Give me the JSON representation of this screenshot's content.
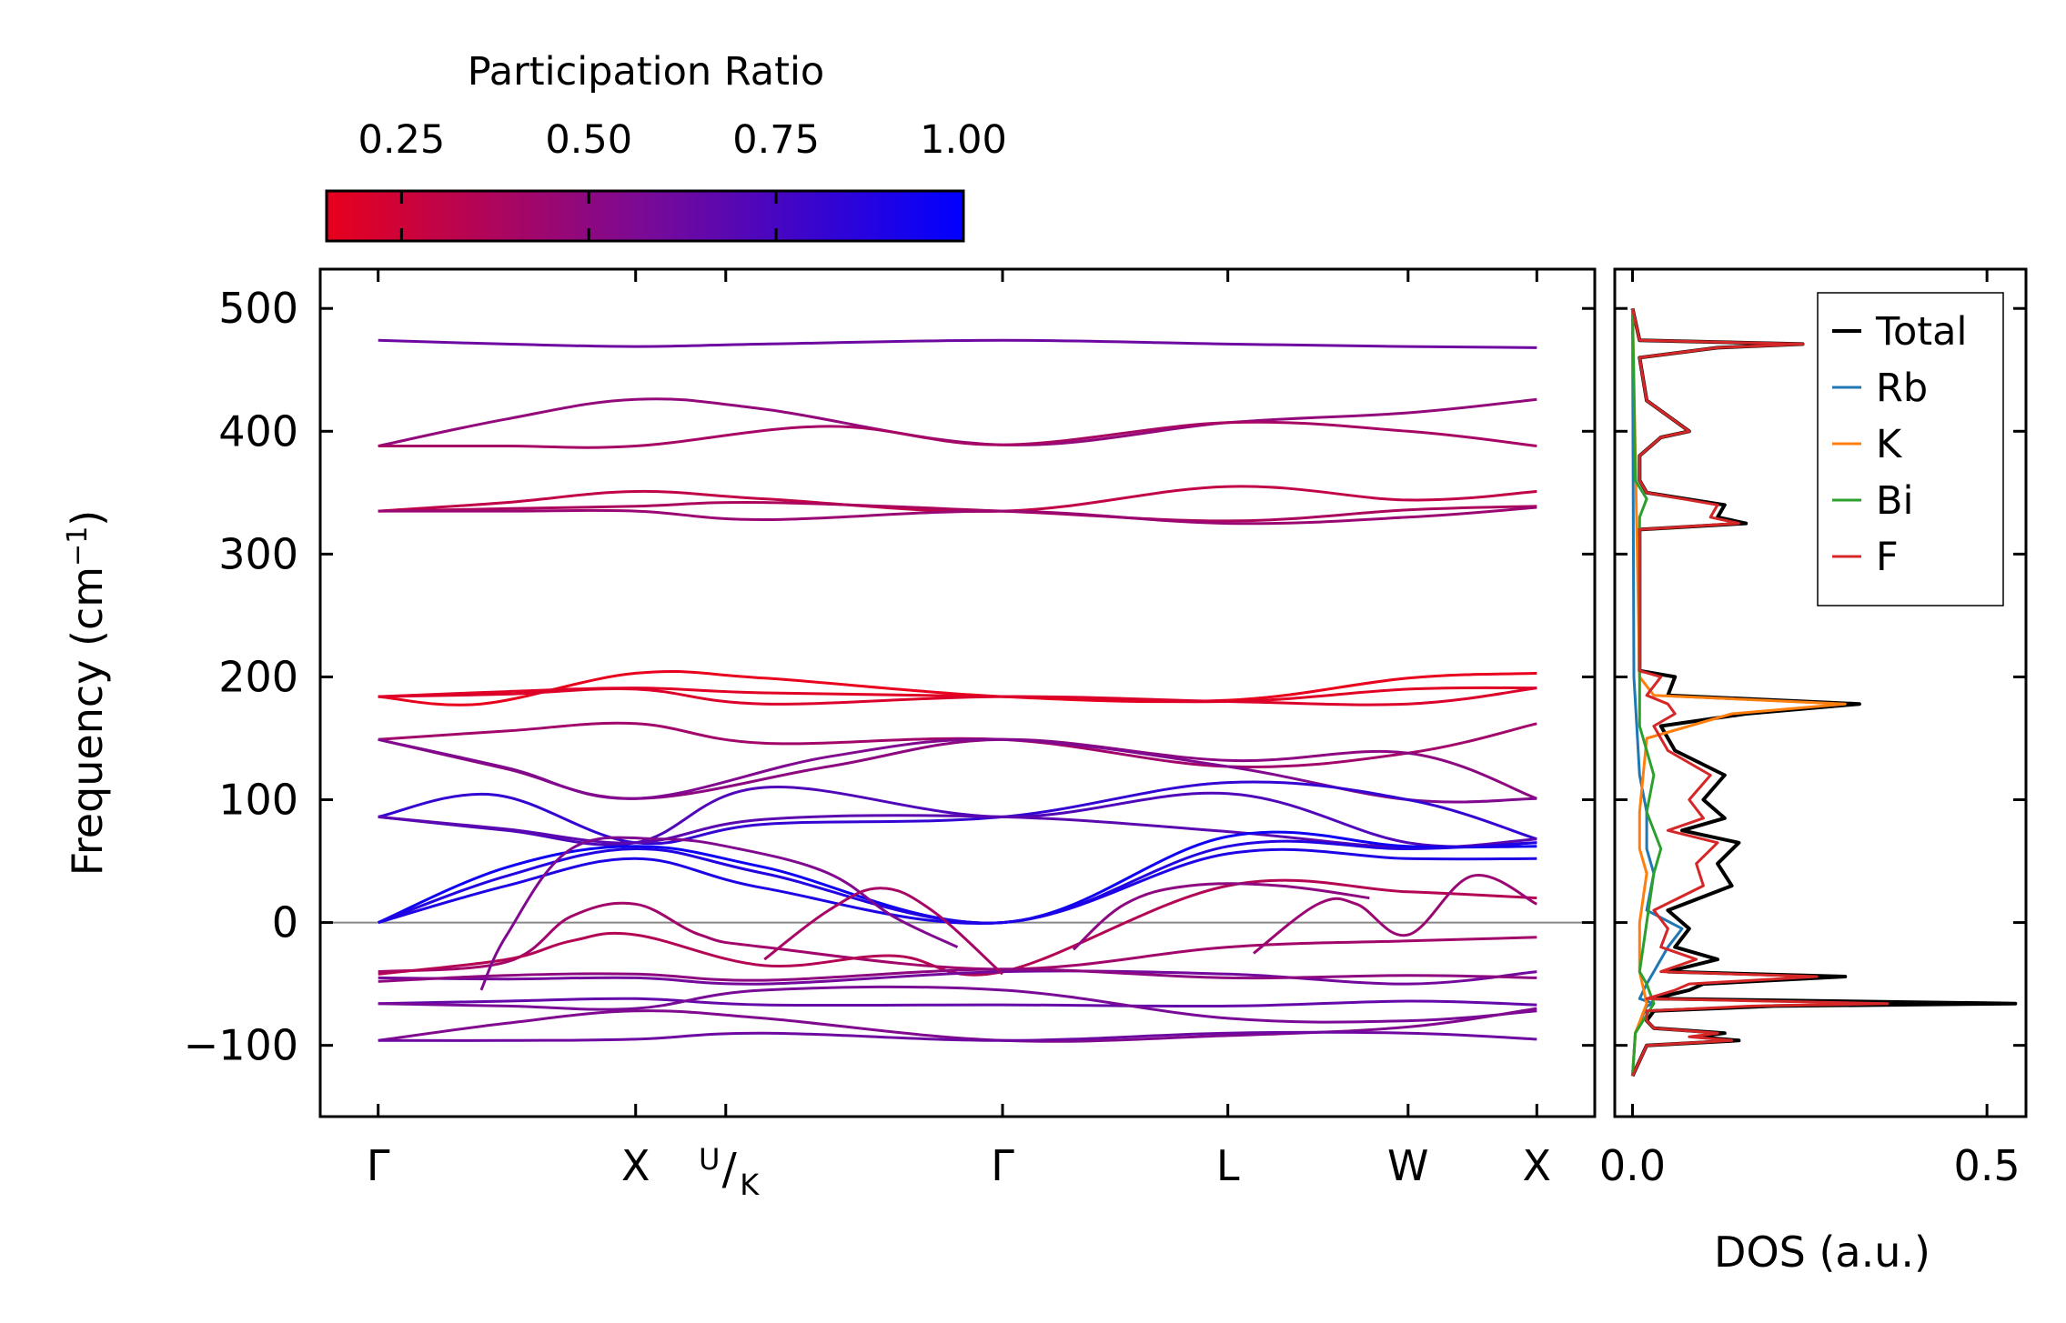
{
  "chart_data": [
    {
      "type": "line",
      "panel": "band-structure",
      "ylabel": "Frequency (cm",
      "ylabel_sup": "−1",
      "ylabel_close": ")",
      "xlabel": "",
      "ylim": [
        -158,
        532
      ],
      "yticks": [
        {
          "value": 500,
          "label": "500"
        },
        {
          "value": 400,
          "label": "400"
        },
        {
          "value": 300,
          "label": "300"
        },
        {
          "value": 200,
          "label": "200"
        },
        {
          "value": 100,
          "label": "100"
        },
        {
          "value": 0,
          "label": "0"
        },
        {
          "value": -100,
          "label": "−100"
        }
      ],
      "xlim": [
        -0.45,
        9.45
      ],
      "kpoints": [
        {
          "x": 0,
          "label": "Γ"
        },
        {
          "x": 2.0,
          "label": "X"
        },
        {
          "x": 2.7,
          "label": "U",
          "label2": "/",
          "label3": "K"
        },
        {
          "x": 4.85,
          "label": "Γ"
        },
        {
          "x": 6.6,
          "label": "L"
        },
        {
          "x": 8.0,
          "label": "W"
        },
        {
          "x": 9.0,
          "label": "X"
        }
      ],
      "zero_line": 0,
      "colorbar": {
        "title": "Participation Ratio",
        "range": [
          0.15,
          1.0
        ],
        "ticks": [
          {
            "value": 0.25,
            "label": "0.25"
          },
          {
            "value": 0.5,
            "label": "0.50"
          },
          {
            "value": 0.75,
            "label": "0.75"
          },
          {
            "value": 1.0,
            "label": "1.00"
          }
        ],
        "color_low": "#e8001c",
        "color_mid": "#7a0a96",
        "color_high": "#0000ff"
      },
      "series": [
        {
          "name": "band-474",
          "pr": 0.62,
          "x": [
            0,
            1,
            2,
            3,
            4.85,
            6.6,
            8,
            9
          ],
          "y": [
            474,
            471,
            469,
            471,
            474,
            471,
            469,
            468
          ]
        },
        {
          "name": "band-427",
          "pr": 0.48,
          "x": [
            0,
            1,
            2,
            3,
            4.85,
            6.6,
            8,
            9
          ],
          "y": [
            388,
            410,
            426,
            418,
            389,
            407,
            415,
            426
          ]
        },
        {
          "name": "band-388",
          "pr": 0.4,
          "x": [
            0,
            1,
            2,
            3.5,
            4.85,
            6.6,
            8,
            9
          ],
          "y": [
            388,
            388,
            388,
            404,
            389,
            407,
            400,
            388
          ]
        },
        {
          "name": "band-351",
          "pr": 0.3,
          "x": [
            0,
            1,
            2,
            3,
            4.85,
            6.6,
            8,
            9
          ],
          "y": [
            335,
            342,
            351,
            345,
            335,
            355,
            344,
            351
          ]
        },
        {
          "name": "band-338",
          "pr": 0.38,
          "x": [
            0,
            1,
            2,
            3,
            4.85,
            6.6,
            8,
            9
          ],
          "y": [
            335,
            337,
            339,
            342,
            335,
            327,
            336,
            339
          ]
        },
        {
          "name": "band-327",
          "pr": 0.45,
          "x": [
            0,
            1,
            2,
            3,
            4.85,
            6.6,
            8,
            9
          ],
          "y": [
            335,
            335,
            335,
            328,
            335,
            325,
            330,
            338
          ]
        },
        {
          "name": "band-203",
          "pr": 0.15,
          "x": [
            0,
            0.8,
            2,
            3,
            4.85,
            6.6,
            8,
            9
          ],
          "y": [
            184,
            178,
            203,
            199,
            184,
            181,
            199,
            203
          ]
        },
        {
          "name": "band-191",
          "pr": 0.18,
          "x": [
            0,
            1,
            2,
            3,
            4.85,
            6.6,
            8,
            9
          ],
          "y": [
            184,
            188,
            191,
            187,
            184,
            180,
            190,
            191
          ]
        },
        {
          "name": "band-180",
          "pr": 0.2,
          "x": [
            0,
            1,
            2,
            3,
            4.85,
            6.6,
            8,
            9
          ],
          "y": [
            184,
            186,
            190,
            178,
            184,
            180,
            178,
            191
          ]
        },
        {
          "name": "band-162",
          "pr": 0.42,
          "x": [
            0,
            1,
            2,
            3,
            4.85,
            6.6,
            8,
            9
          ],
          "y": [
            149,
            156,
            162,
            146,
            149,
            127,
            138,
            162
          ]
        },
        {
          "name": "band-149a",
          "pr": 0.5,
          "x": [
            0,
            1,
            2,
            3.5,
            4.85,
            6.6,
            8,
            9
          ],
          "y": [
            149,
            125,
            101,
            127,
            149,
            132,
            138,
            101
          ]
        },
        {
          "name": "band-149b",
          "pr": 0.55,
          "x": [
            0,
            1,
            2,
            3.5,
            4.85,
            6.6,
            8,
            9
          ],
          "y": [
            149,
            126,
            101,
            135,
            149,
            127,
            100,
            101
          ]
        },
        {
          "name": "band-104",
          "pr": 0.82,
          "x": [
            0,
            0.9,
            2,
            3,
            4.85,
            6.6,
            8,
            9
          ],
          "y": [
            86,
            104,
            65,
            80,
            86,
            114,
            100,
            68
          ]
        },
        {
          "name": "band-112",
          "pr": 0.72,
          "x": [
            0,
            1,
            2,
            3,
            4.85,
            6.6,
            8,
            9
          ],
          "y": [
            86,
            75,
            65,
            110,
            86,
            105,
            65,
            65
          ]
        },
        {
          "name": "band-86",
          "pr": 0.68,
          "x": [
            0,
            1,
            2,
            3,
            4.85,
            6.6,
            8,
            9
          ],
          "y": [
            86,
            76,
            65,
            84,
            86,
            74,
            61,
            68
          ]
        },
        {
          "name": "band-ac1",
          "pr": 0.95,
          "x": [
            0,
            1,
            2,
            3,
            4.85,
            6.6,
            8,
            9
          ],
          "y": [
            0,
            45,
            62,
            45,
            0,
            70,
            62,
            62
          ]
        },
        {
          "name": "band-ac2",
          "pr": 0.88,
          "x": [
            0,
            1,
            2,
            3,
            4.85,
            6.6,
            8,
            9
          ],
          "y": [
            0,
            38,
            60,
            40,
            0,
            62,
            60,
            65
          ]
        },
        {
          "name": "band-ac3",
          "pr": 0.9,
          "x": [
            0,
            1,
            2,
            3,
            4.85,
            6.6,
            8,
            9
          ],
          "y": [
            0,
            30,
            52,
            28,
            0,
            56,
            52,
            52
          ]
        },
        {
          "name": "band-s1",
          "pr": 0.42,
          "x": [
            0,
            1,
            1.5,
            2,
            2.5,
            3,
            4.85,
            6.6,
            8,
            9
          ],
          "y": [
            -40,
            -32,
            5,
            15,
            -10,
            -20,
            -38,
            -20,
            -15,
            -12
          ]
        },
        {
          "name": "band-s2",
          "pr": 0.35,
          "x": [
            0,
            1,
            1.5,
            2,
            3,
            4,
            4.85,
            6.6,
            8,
            9
          ],
          "y": [
            -42,
            -30,
            -15,
            -10,
            -35,
            -27,
            -40,
            30,
            25,
            20
          ]
        },
        {
          "name": "band-s3",
          "pr": 0.6,
          "x": [
            0,
            1,
            2,
            3,
            4.85,
            6.6,
            8,
            9
          ],
          "y": [
            -45,
            -46,
            -45,
            -50,
            -40,
            -42,
            -50,
            -40
          ]
        },
        {
          "name": "band-s4",
          "pr": 0.5,
          "x": [
            0,
            1,
            2,
            3,
            4.85,
            6.6,
            8,
            9
          ],
          "y": [
            -48,
            -43,
            -42,
            -47,
            -38,
            -45,
            -43,
            -45
          ]
        },
        {
          "name": "band-s5",
          "pr": 0.65,
          "x": [
            0,
            1,
            2,
            3,
            4.85,
            6.6,
            8,
            9
          ],
          "y": [
            -66,
            -64,
            -62,
            -67,
            -67,
            -68,
            -64,
            -67
          ]
        },
        {
          "name": "band-s6",
          "pr": 0.58,
          "x": [
            0,
            1,
            2,
            3,
            4.85,
            6.6,
            8,
            9
          ],
          "y": [
            -66,
            -68,
            -70,
            -55,
            -55,
            -78,
            -80,
            -72
          ]
        },
        {
          "name": "band-s7",
          "pr": 0.55,
          "x": [
            0,
            1,
            2,
            3,
            4.85,
            6.6,
            8,
            9
          ],
          "y": [
            -96,
            -82,
            -72,
            -78,
            -96,
            -92,
            -85,
            -70
          ]
        },
        {
          "name": "band-s8",
          "pr": 0.62,
          "x": [
            0,
            1,
            2,
            3,
            4.85,
            6.6,
            8,
            9
          ],
          "y": [
            -96,
            -96,
            -95,
            -90,
            -96,
            -90,
            -90,
            -95
          ]
        },
        {
          "name": "band-hump1",
          "pr": 0.55,
          "x": [
            0.8,
            1.0,
            1.5,
            2.2,
            2.8,
            3.5,
            4.0,
            4.5
          ],
          "y": [
            -55,
            -10,
            60,
            68,
            60,
            40,
            5,
            -20
          ]
        },
        {
          "name": "band-hump2",
          "pr": 0.4,
          "x": [
            3.0,
            3.5,
            3.9,
            4.3,
            4.85
          ],
          "y": [
            -30,
            10,
            28,
            10,
            -42
          ]
        },
        {
          "name": "band-hump3",
          "pr": 0.5,
          "x": [
            5.4,
            5.8,
            6.3,
            7.0,
            7.7
          ],
          "y": [
            -22,
            15,
            30,
            30,
            20
          ]
        },
        {
          "name": "band-hump4",
          "pr": 0.45,
          "x": [
            6.8,
            7.3,
            7.6,
            8.0,
            8.5,
            9.0
          ],
          "y": [
            -25,
            15,
            15,
            -10,
            38,
            15
          ]
        }
      ]
    },
    {
      "type": "line",
      "panel": "dos",
      "xlabel": "DOS (a.u.)",
      "xlim": [
        -0.025,
        0.555
      ],
      "ylim": [
        -158,
        532
      ],
      "xticks": [
        {
          "value": 0.0,
          "label": "0.0"
        },
        {
          "value": 0.5,
          "label": "0.5"
        }
      ],
      "legend": {
        "placement": "top-right"
      },
      "series": [
        {
          "name": "Total",
          "color": "#000000",
          "y": [
            -125,
            -100,
            -96,
            -93,
            -90,
            -86,
            -80,
            -72,
            -68,
            -66,
            -62,
            -55,
            -50,
            -44,
            -40,
            -30,
            -20,
            -5,
            10,
            30,
            48,
            65,
            75,
            85,
            100,
            120,
            140,
            160,
            170,
            178,
            185,
            200,
            205,
            320,
            325,
            330,
            340,
            350,
            360,
            380,
            395,
            400,
            425,
            460,
            468,
            471,
            474,
            500
          ],
          "values": [
            0,
            0.02,
            0.15,
            0.09,
            0.13,
            0.03,
            0.02,
            0.03,
            0.2,
            0.54,
            0.03,
            0.08,
            0.1,
            0.3,
            0.05,
            0.12,
            0.06,
            0.08,
            0.05,
            0.14,
            0.12,
            0.15,
            0.07,
            0.13,
            0.1,
            0.13,
            0.06,
            0.04,
            0.16,
            0.32,
            0.05,
            0.06,
            0.01,
            0.01,
            0.16,
            0.12,
            0.13,
            0.02,
            0.01,
            0.01,
            0.04,
            0.08,
            0.02,
            0.01,
            0.12,
            0.24,
            0.01,
            0
          ]
        },
        {
          "name": "Rb",
          "color": "#1f77b4",
          "y": [
            -125,
            -90,
            -68,
            -66,
            -62,
            -50,
            -40,
            -20,
            -5,
            10,
            40,
            60,
            90,
            120,
            180,
            200,
            500
          ],
          "values": [
            0,
            0.004,
            0.02,
            0.03,
            0.01,
            0.02,
            0.03,
            0.05,
            0.07,
            0.02,
            0.03,
            0.02,
            0.02,
            0.01,
            0.004,
            0.002,
            0
          ]
        },
        {
          "name": "K",
          "color": "#ff7f0e",
          "y": [
            -125,
            -90,
            -66,
            -40,
            0,
            40,
            60,
            90,
            150,
            170,
            178,
            185,
            200,
            500
          ],
          "values": [
            0,
            0.004,
            0.02,
            0.01,
            0.01,
            0.02,
            0.01,
            0.01,
            0.02,
            0.14,
            0.3,
            0.03,
            0.01,
            0
          ]
        },
        {
          "name": "Bi",
          "color": "#2ca02c",
          "y": [
            -125,
            -90,
            -66,
            -50,
            -40,
            0,
            40,
            60,
            90,
            120,
            160,
            200,
            330,
            345,
            360,
            400,
            500
          ],
          "values": [
            0,
            0.004,
            0.03,
            0.02,
            0.01,
            0.02,
            0.03,
            0.04,
            0.02,
            0.03,
            0.01,
            0.01,
            0.01,
            0.02,
            0.004,
            0.003,
            0
          ]
        },
        {
          "name": "F",
          "color": "#d62728",
          "y": [
            -125,
            -100,
            -96,
            -93,
            -90,
            -86,
            -80,
            -72,
            -68,
            -66,
            -62,
            -55,
            -50,
            -44,
            -40,
            -30,
            -20,
            -5,
            10,
            30,
            48,
            65,
            75,
            85,
            100,
            120,
            140,
            160,
            170,
            178,
            185,
            200,
            205,
            320,
            325,
            330,
            340,
            350,
            360,
            380,
            395,
            400,
            425,
            460,
            468,
            471,
            474,
            500
          ],
          "values": [
            0,
            0.02,
            0.14,
            0.08,
            0.12,
            0.03,
            0.02,
            0.02,
            0.17,
            0.36,
            0.02,
            0.06,
            0.08,
            0.26,
            0.04,
            0.09,
            0.04,
            0.05,
            0.03,
            0.1,
            0.09,
            0.12,
            0.05,
            0.1,
            0.08,
            0.11,
            0.05,
            0.03,
            0.06,
            0.05,
            0.02,
            0.04,
            0.01,
            0.01,
            0.15,
            0.11,
            0.12,
            0.02,
            0.01,
            0.01,
            0.04,
            0.08,
            0.02,
            0.01,
            0.12,
            0.24,
            0.01,
            0
          ]
        }
      ]
    }
  ]
}
